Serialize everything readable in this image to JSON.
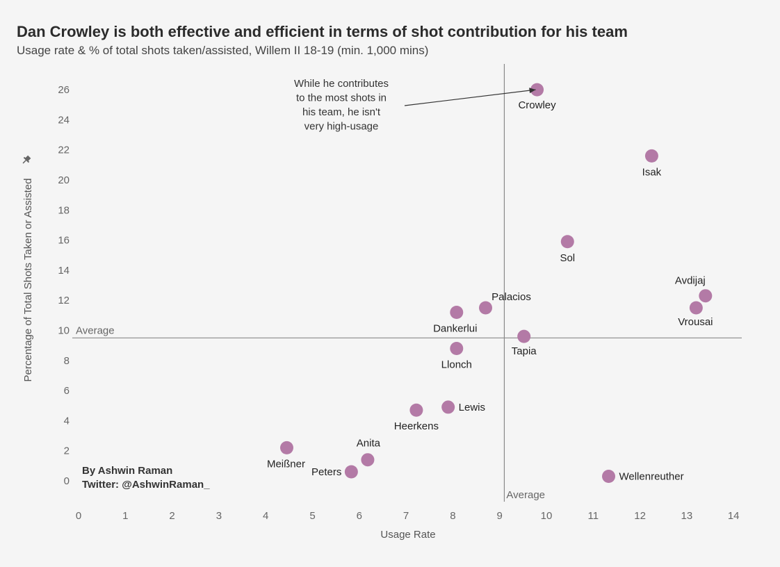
{
  "title": "Dan Crowley is both effective and efficient in terms of shot contribution for his team",
  "subtitle": "Usage rate & % of total shots taken/assisted, Willem II 18-19 (min. 1,000 mins)",
  "credits": [
    "By Ashwin Raman",
    "Twitter: @AshwinRaman_"
  ],
  "annotation": {
    "lines": [
      "While he contributes",
      "to the most shots in",
      "his team, he isn't",
      "very high-usage"
    ],
    "points_to": "Crowley"
  },
  "pin_icon": "pin-icon",
  "chart_data": {
    "type": "scatter",
    "xlabel": "Usage Rate",
    "ylabel": "Percentage of Total Shots Taken or Assisted",
    "xlim": [
      0,
      14
    ],
    "ylim": [
      -1,
      27
    ],
    "x_ticks": [
      0,
      1,
      2,
      3,
      4,
      5,
      6,
      7,
      8,
      9,
      10,
      11,
      12,
      13,
      14
    ],
    "y_ticks": [
      0,
      2,
      4,
      6,
      8,
      10,
      12,
      14,
      16,
      18,
      20,
      22,
      24,
      26
    ],
    "grid": false,
    "point_color": "#b37aa6",
    "reference_lines": {
      "x_average": 9.1,
      "y_average": 9.5,
      "x_label": "Average",
      "y_label": "Average"
    },
    "points": [
      {
        "name": "Crowley",
        "x": 9.8,
        "y": 26.0
      },
      {
        "name": "Isak",
        "x": 12.25,
        "y": 21.6
      },
      {
        "name": "Sol",
        "x": 10.45,
        "y": 15.9
      },
      {
        "name": "Avdijaj",
        "x": 13.4,
        "y": 12.3
      },
      {
        "name": "Vrousai",
        "x": 13.2,
        "y": 11.5
      },
      {
        "name": "Palacios",
        "x": 8.7,
        "y": 11.5
      },
      {
        "name": "Dankerlui",
        "x": 8.08,
        "y": 11.2
      },
      {
        "name": "Tapia",
        "x": 9.52,
        "y": 9.6
      },
      {
        "name": "Llonch",
        "x": 8.08,
        "y": 8.8
      },
      {
        "name": "Lewis",
        "x": 7.9,
        "y": 4.9
      },
      {
        "name": "Heerkens",
        "x": 7.22,
        "y": 4.7
      },
      {
        "name": "Meißner",
        "x": 4.45,
        "y": 2.2
      },
      {
        "name": "Anita",
        "x": 6.18,
        "y": 1.4
      },
      {
        "name": "Peters",
        "x": 5.83,
        "y": 0.6
      },
      {
        "name": "Wellenreuther",
        "x": 11.33,
        "y": 0.3
      }
    ]
  }
}
